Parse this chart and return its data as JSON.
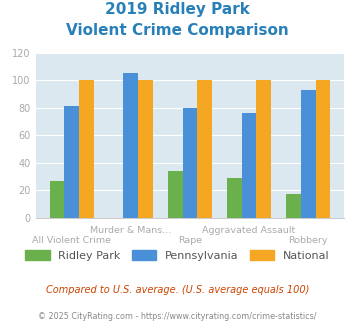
{
  "title_line1": "2019 Ridley Park",
  "title_line2": "Violent Crime Comparison",
  "categories": [
    "All Violent Crime",
    "Murder & Mans...",
    "Rape",
    "Aggravated Assault",
    "Robbery"
  ],
  "ridley_park": [
    27,
    0,
    34,
    29,
    17
  ],
  "pennsylvania": [
    81,
    105,
    80,
    76,
    93
  ],
  "national": [
    100,
    100,
    100,
    100,
    100
  ],
  "colors": {
    "ridley_park": "#6ab04c",
    "pennsylvania": "#4a90d9",
    "national": "#f5a623",
    "title": "#2980b9",
    "axes_bg": "#dce8f0",
    "footnote1": "#cc4400",
    "footnote2": "#888888",
    "tick_label": "#aaaaaa",
    "grid": "#ffffff"
  },
  "ylim": [
    0,
    120
  ],
  "yticks": [
    0,
    20,
    40,
    60,
    80,
    100,
    120
  ],
  "legend_labels": [
    "Ridley Park",
    "Pennsylvania",
    "National"
  ],
  "footnote1": "Compared to U.S. average. (U.S. average equals 100)",
  "footnote2": "© 2025 CityRating.com - https://www.cityrating.com/crime-statistics/",
  "bar_width": 0.25
}
